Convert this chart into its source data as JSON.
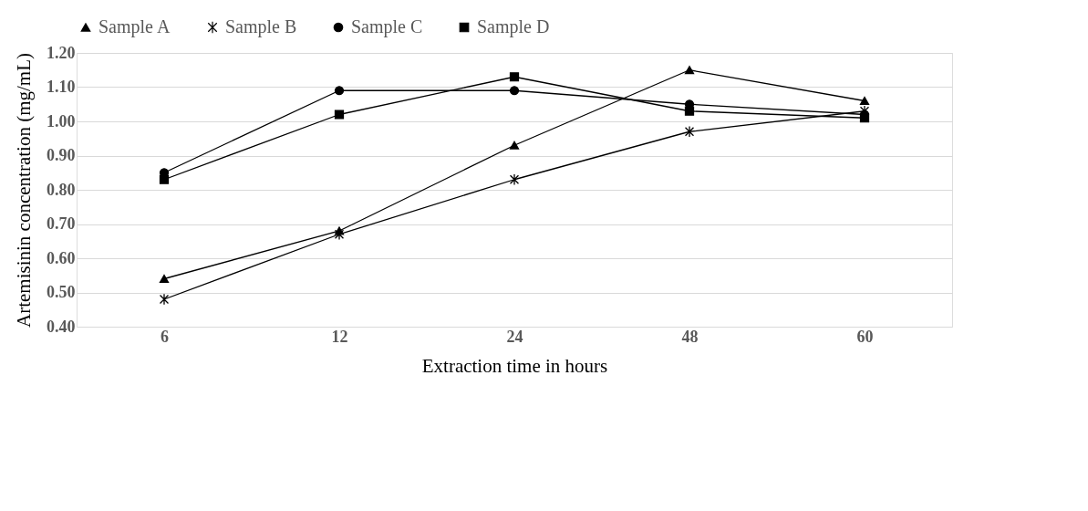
{
  "chart_data": {
    "type": "line",
    "xlabel": "Extraction time in hours",
    "ylabel": "Artemisinin concentration (mg/mL)",
    "categories": [
      "6",
      "12",
      "24",
      "48",
      "60"
    ],
    "series": [
      {
        "name": "Sample A",
        "color": "#000000",
        "marker": "triangle",
        "values": [
          0.54,
          0.68,
          0.93,
          1.15,
          1.06
        ]
      },
      {
        "name": "Sample B",
        "color": "#000000",
        "marker": "cross",
        "values": [
          0.48,
          0.67,
          0.83,
          0.97,
          1.03
        ]
      },
      {
        "name": "Sample C",
        "color": "#000000",
        "marker": "circle",
        "values": [
          0.85,
          1.09,
          1.09,
          1.05,
          1.02
        ]
      },
      {
        "name": "Sample D",
        "color": "#000000",
        "marker": "square",
        "values": [
          0.83,
          1.02,
          1.13,
          1.03,
          1.01
        ]
      }
    ],
    "ylim": [
      0.4,
      1.2
    ],
    "yticks": [
      {
        "value": 0.4,
        "label": "0.40"
      },
      {
        "value": 0.5,
        "label": "0.50"
      },
      {
        "value": 0.6,
        "label": "0.60"
      },
      {
        "value": 0.7,
        "label": "0.70"
      },
      {
        "value": 0.8,
        "label": "0.80"
      },
      {
        "value": 0.9,
        "label": "0.90"
      },
      {
        "value": 1.0,
        "label": "1.00"
      },
      {
        "value": 1.1,
        "label": "1.10"
      },
      {
        "value": 1.2,
        "label": "1.20"
      }
    ],
    "grid": "y",
    "legend": "top",
    "line_style": "solid"
  }
}
